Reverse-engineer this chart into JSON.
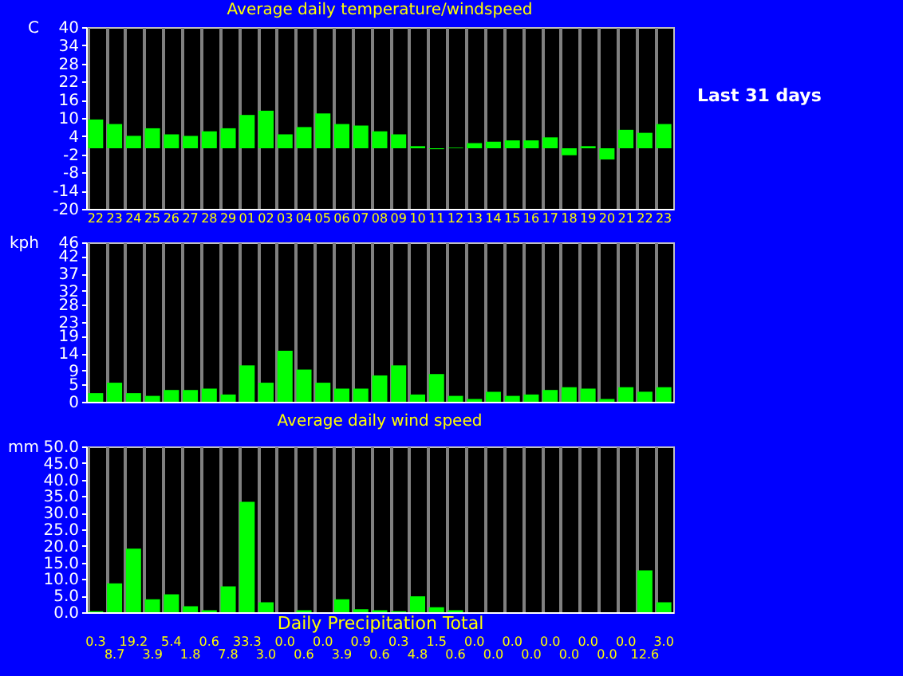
{
  "chart_data": [
    {
      "type": "bar",
      "title": "Average daily temperature/windspeed",
      "ylabel": "C",
      "annotations": [
        "Last 31 days"
      ],
      "categories": [
        "22",
        "23",
        "24",
        "25",
        "26",
        "27",
        "28",
        "29",
        "01",
        "02",
        "03",
        "04",
        "05",
        "06",
        "07",
        "08",
        "09",
        "10",
        "11",
        "12",
        "13",
        "14",
        "15",
        "16",
        "17",
        "18",
        "19",
        "20",
        "21",
        "22",
        "23"
      ],
      "series": [
        {
          "color": "#00ff00",
          "values": [
            9.5,
            8,
            4.1,
            6.6,
            4.6,
            4.1,
            5.6,
            6.6,
            11,
            12.4,
            4.6,
            7,
            11.5,
            8,
            7.5,
            5.6,
            4.6,
            0.7,
            -0.3,
            0.2,
            1.7,
            2.2,
            2.6,
            2.6,
            3.6,
            -2.3,
            0.7,
            -3.7,
            6.1,
            5.1,
            8
          ]
        }
      ],
      "ylim": [
        -20,
        40
      ],
      "yticks": [
        -20,
        -14,
        -8,
        -2,
        4,
        10,
        16,
        22,
        28,
        34,
        40
      ],
      "grid": "x"
    },
    {
      "type": "bar",
      "title": "Average daily wind speed",
      "ylabel": "kph",
      "categories": [
        null,
        null,
        null,
        null,
        null,
        null,
        null,
        null,
        null,
        null,
        null,
        null,
        null,
        null,
        null,
        null,
        null,
        null,
        null,
        null,
        null,
        null,
        null,
        null,
        null,
        null,
        null,
        null,
        null,
        null,
        null
      ],
      "series": [
        {
          "color": "#00ff00",
          "values": [
            2.5,
            5.5,
            2.5,
            1.7,
            3.4,
            3.4,
            3.8,
            2.1,
            10.5,
            5.5,
            14.7,
            9.3,
            5.5,
            3.8,
            3.8,
            7.6,
            10.5,
            2.1,
            8,
            1.7,
            0.8,
            2.9,
            1.7,
            2.1,
            3.4,
            4.2,
            3.8,
            0.8,
            4.2,
            2.9,
            4.2
          ]
        }
      ],
      "ylim": [
        0,
        46
      ],
      "yticks": [
        0,
        5,
        9,
        14,
        19,
        23,
        28,
        32,
        37,
        42,
        46
      ],
      "grid": "x",
      "tick_labels": "y"
    },
    {
      "type": "bar",
      "xlabel": "Daily Precipitation Total",
      "ylabel": "mm",
      "categories": [
        null,
        null,
        null,
        null,
        null,
        null,
        null,
        null,
        null,
        null,
        null,
        null,
        null,
        null,
        null,
        null,
        null,
        null,
        null,
        null,
        null,
        null,
        null,
        null,
        null,
        null,
        null,
        null,
        null,
        null,
        null
      ],
      "series": [
        {
          "color": "#00ff00",
          "values": [
            0.3,
            8.7,
            19.2,
            3.9,
            5.4,
            1.8,
            0.6,
            7.8,
            33.3,
            3.0,
            0.0,
            0.6,
            0.0,
            3.9,
            0.9,
            0.6,
            0.3,
            4.8,
            1.5,
            0.6,
            0.0,
            0.0,
            0.0,
            0.0,
            0.0,
            0.0,
            0.0,
            0.0,
            0.0,
            12.6,
            3.0
          ],
          "value_labels": [
            "0.3",
            "8.7",
            "19.2",
            "3.9",
            "5.4",
            "1.8",
            "0.6",
            "7.8",
            "33.3",
            "3.0",
            "0.0",
            "0.6",
            "0.0",
            "3.9",
            "0.9",
            "0.6",
            "0.3",
            "4.8",
            "1.5",
            "0.6",
            "0.0",
            "0.0",
            "0.0",
            "0.0",
            "0.0",
            "0.0",
            "0.0",
            "0.0",
            "0.0",
            "12.6",
            "3.0"
          ]
        }
      ],
      "ylim": [
        0,
        50
      ],
      "yticks": [
        {
          "value": 0,
          "label": "0.0"
        },
        {
          "value": 5,
          "label": "5.0"
        },
        {
          "value": 10,
          "label": "10.0"
        },
        {
          "value": 15,
          "label": "15.0"
        },
        {
          "value": 20,
          "label": "20.0"
        },
        {
          "value": 25,
          "label": "25.0"
        },
        {
          "value": 30,
          "label": "30.0"
        },
        {
          "value": 35,
          "label": "35.0"
        },
        {
          "value": 40,
          "label": "40.0"
        },
        {
          "value": 45,
          "label": "45.0"
        },
        {
          "value": 50,
          "label": "50.0"
        }
      ],
      "grid": "x",
      "tick_labels": "y"
    }
  ]
}
